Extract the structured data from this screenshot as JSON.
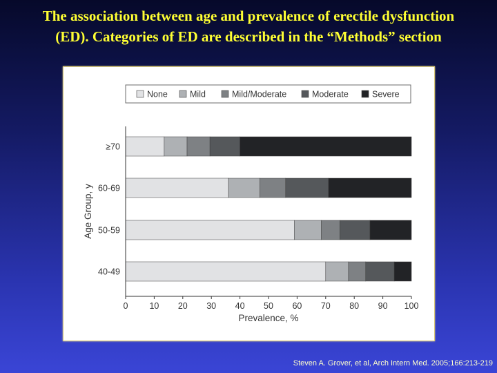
{
  "title": {
    "line1": "The association between age and prevalence of erectile dysfunction",
    "line2": "(ED). Categories of ED are described in the “Methods” section"
  },
  "citation": "Steven A. Grover, et al, Arch Intern Med. 2005;166:213-219",
  "colors": {
    "None": "#e1e2e4",
    "Mild": "#aeb1b4",
    "Mild/Moderate": "#7e8184",
    "Moderate": "#55585b",
    "Severe": "#222326"
  },
  "chart_data": {
    "type": "bar",
    "orientation": "horizontal",
    "stacked": true,
    "categories": [
      "40-49",
      "50-59",
      "60-69",
      "≥70"
    ],
    "series": [
      {
        "name": "None",
        "values": [
          70,
          59,
          36,
          13.5
        ]
      },
      {
        "name": "Mild",
        "values": [
          8,
          9.5,
          11,
          8
        ]
      },
      {
        "name": "Mild/Moderate",
        "values": [
          6,
          6.5,
          9,
          8
        ]
      },
      {
        "name": "Moderate",
        "values": [
          10,
          10.5,
          15,
          10.5
        ]
      },
      {
        "name": "Severe",
        "values": [
          6,
          14.5,
          29,
          60
        ]
      }
    ],
    "xlabel": "Prevalence, %",
    "ylabel": "Age Group, y",
    "xlim": [
      0,
      100
    ],
    "xticks": [
      "0",
      "10",
      "20",
      "30",
      "40",
      "50",
      "60",
      "70",
      "80",
      "90",
      "100"
    ],
    "legend_position": "top",
    "grid": false
  }
}
